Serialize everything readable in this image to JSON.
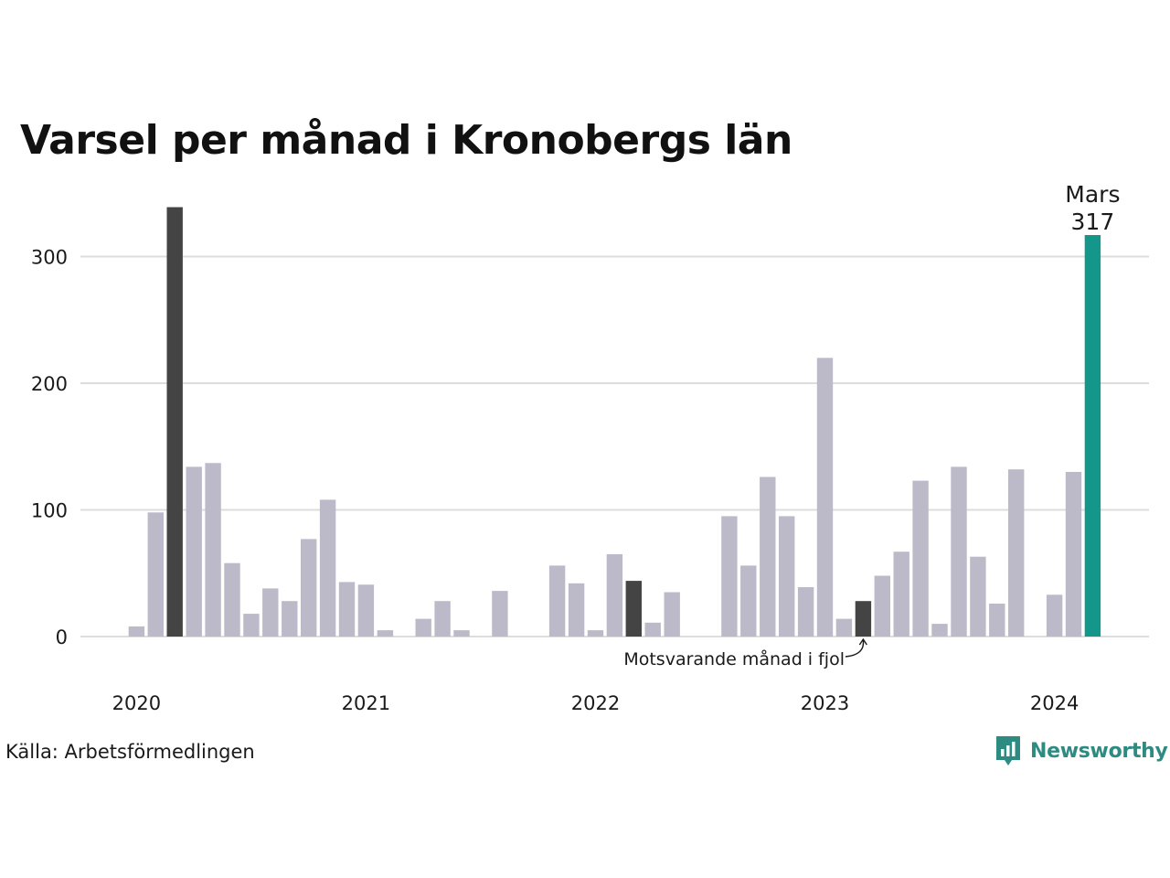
{
  "chart_data": {
    "type": "bar",
    "title": "Varsel per månad i Kronobergs län",
    "source": "Källa: Arbetsförmedlingen",
    "brand": "Newsworthy",
    "ylim": [
      0,
      340
    ],
    "yticks": [
      0,
      100,
      200,
      300
    ],
    "xticks": [
      {
        "label": "2020",
        "index": 0
      },
      {
        "label": "2021",
        "index": 12
      },
      {
        "label": "2022",
        "index": 24
      },
      {
        "label": "2023",
        "index": 36
      },
      {
        "label": "2024",
        "index": 48
      }
    ],
    "grid": true,
    "categories": [
      "2020-01",
      "2020-02",
      "2020-03",
      "2020-04",
      "2020-05",
      "2020-06",
      "2020-07",
      "2020-08",
      "2020-09",
      "2020-10",
      "2020-11",
      "2020-12",
      "2021-01",
      "2021-02",
      "2021-03",
      "2021-04",
      "2021-05",
      "2021-06",
      "2021-07",
      "2021-08",
      "2021-09",
      "2021-10",
      "2021-11",
      "2021-12",
      "2022-01",
      "2022-02",
      "2022-03",
      "2022-04",
      "2022-05",
      "2022-06",
      "2022-07",
      "2022-08",
      "2022-09",
      "2022-10",
      "2022-11",
      "2022-12",
      "2023-01",
      "2023-02",
      "2023-03",
      "2023-04",
      "2023-05",
      "2023-06",
      "2023-07",
      "2023-08",
      "2023-09",
      "2023-10",
      "2023-11",
      "2023-12",
      "2024-01",
      "2024-02",
      "2024-03"
    ],
    "values": [
      8,
      98,
      339,
      134,
      137,
      58,
      18,
      38,
      28,
      77,
      108,
      43,
      41,
      5,
      0,
      14,
      28,
      5,
      0,
      36,
      0,
      0,
      56,
      42,
      5,
      65,
      44,
      11,
      35,
      0,
      0,
      95,
      56,
      126,
      95,
      39,
      220,
      14,
      28,
      48,
      67,
      123,
      10,
      134,
      63,
      26,
      132,
      0,
      33,
      130,
      317
    ],
    "dark_indices": [
      2,
      26,
      38
    ],
    "highlight_index": 50,
    "highlight_label": {
      "month": "Mars",
      "value": "317"
    },
    "annotation": {
      "text": "Motsvarande månad i fjol",
      "index": 38
    },
    "colors": {
      "bar": "#bcbac8",
      "dark": "#444444",
      "highlight": "#14968a",
      "grid": "#dddddd",
      "brand": "#2e8b82"
    }
  }
}
